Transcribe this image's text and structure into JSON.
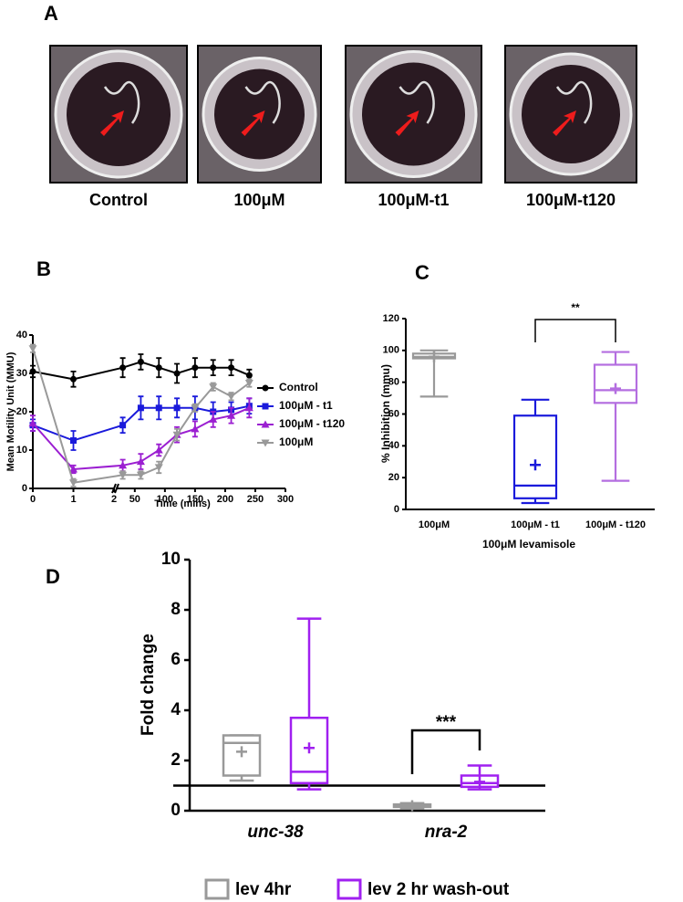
{
  "chart_data": [
    {
      "type": "images",
      "label": "A",
      "captions": [
        "Control",
        "100μM",
        "100μM-t1",
        "100μM-t120"
      ]
    },
    {
      "type": "line",
      "label": "B",
      "ylabel": "Mean Motility Unit (MMU)",
      "xlabel": "Time (mins)",
      "x": [
        0,
        1,
        30,
        60,
        90,
        120,
        150,
        180,
        210,
        240
      ],
      "x_segments": [
        {
          "xlim": [
            0,
            2
          ],
          "xticks": [
            0,
            1,
            2
          ]
        },
        {
          "xlim": [
            20,
            300
          ],
          "xticks": [
            50,
            100,
            150,
            200,
            250,
            300
          ]
        }
      ],
      "ylim": [
        0,
        40
      ],
      "yticks": [
        0,
        10,
        20,
        30,
        40
      ],
      "legend": "right",
      "series": [
        {
          "name": "Control",
          "color": "#000000",
          "marker": "circle",
          "values": [
            30.5,
            28.5,
            31.5,
            33,
            31.5,
            30,
            31.5,
            31.5,
            31.5,
            29.5
          ],
          "errors": [
            1.5,
            2,
            2.5,
            2,
            2.5,
            2.5,
            2.5,
            2,
            2,
            1.5
          ]
        },
        {
          "name": "100μM - t1",
          "color": "#1a1adb",
          "marker": "square",
          "values": [
            16.5,
            12.5,
            16.5,
            21,
            21,
            21,
            21,
            20,
            20.5,
            21.5
          ],
          "errors": [
            1.5,
            2.5,
            2,
            3,
            3,
            2.5,
            3,
            2.5,
            2,
            2
          ]
        },
        {
          "name": "100μM - t120",
          "color": "#9b1fd1",
          "marker": "triangle",
          "values": [
            17,
            5,
            6,
            7,
            10,
            14,
            15.5,
            18,
            19,
            21
          ],
          "errors": [
            2,
            1,
            1.5,
            2,
            1.5,
            2,
            2,
            2,
            2,
            2.5
          ]
        },
        {
          "name": "100μM",
          "color": "#999999",
          "marker": "triangle-down",
          "values": [
            36.5,
            1.5,
            3.5,
            3.5,
            5.5,
            14,
            21,
            26.5,
            24,
            27.5
          ],
          "errors": [
            1,
            1,
            1,
            1,
            1.5,
            1.5,
            1,
            1,
            1,
            1
          ]
        }
      ]
    },
    {
      "type": "box",
      "label": "C",
      "ylabel": "% Inhibition (mmu)",
      "xlabel": "100μM levamisole",
      "categories": [
        "100μM",
        "100μM - t1",
        "100μM - t120"
      ],
      "colors": [
        "#999999",
        "#1a1adb",
        "#b46ee0"
      ],
      "ylim": [
        0,
        120
      ],
      "yticks": [
        0,
        20,
        40,
        60,
        80,
        100,
        120
      ],
      "boxes": [
        {
          "min": 71,
          "q1": 95,
          "median": 96,
          "q3": 98,
          "max": 100,
          "mean": 96
        },
        {
          "min": 4,
          "q1": 7,
          "median": 15,
          "q3": 59,
          "max": 69,
          "mean": 28
        },
        {
          "min": 18,
          "q1": 67,
          "median": 75,
          "q3": 91,
          "max": 99,
          "mean": 76
        }
      ],
      "significance": "**"
    },
    {
      "type": "grouped_box",
      "label": "D",
      "ylabel": "Fold change",
      "categories": [
        "unc-38",
        "nra-2"
      ],
      "ylim": [
        0,
        10
      ],
      "yticks": [
        0,
        2,
        4,
        6,
        8,
        10
      ],
      "reference_line": 1,
      "series": [
        {
          "name": "lev 4hr",
          "color": "#999999",
          "boxes": [
            {
              "min": 1.2,
              "q1": 1.4,
              "median": 2.7,
              "q3": 3.0,
              "max": 3.0,
              "mean": 2.35
            },
            {
              "min": 0.1,
              "q1": 0.15,
              "median": 0.2,
              "q3": 0.25,
              "max": 0.3,
              "mean": 0.2
            }
          ]
        },
        {
          "name": "lev 2 hr wash-out",
          "color": "#a020f0",
          "boxes": [
            {
              "min": 0.85,
              "q1": 1.1,
              "median": 1.55,
              "q3": 3.7,
              "max": 7.65,
              "mean": 2.5
            },
            {
              "min": 0.85,
              "q1": 0.95,
              "median": 1.1,
              "q3": 1.4,
              "max": 1.8,
              "mean": 1.15
            }
          ]
        }
      ],
      "significance": "***"
    }
  ]
}
